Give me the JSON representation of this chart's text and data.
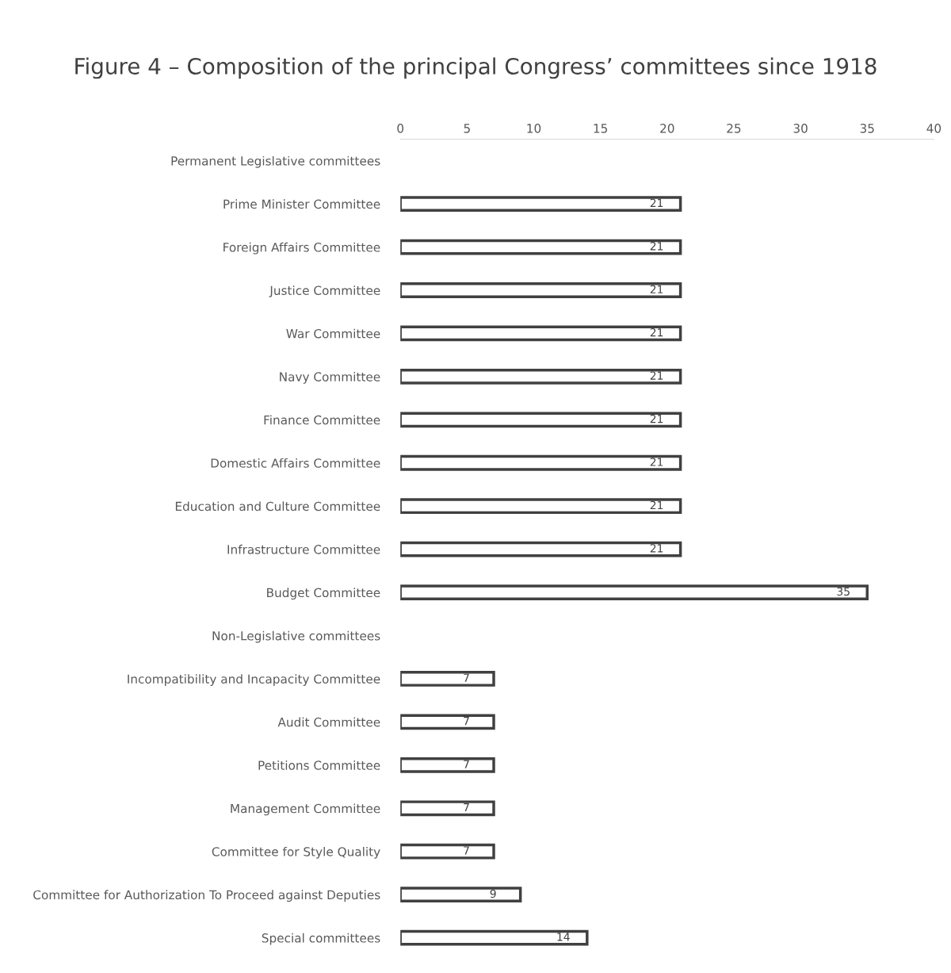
{
  "chart_data": {
    "type": "bar",
    "orientation": "horizontal",
    "title": "Figure 4 – Composition of the principal Congress’ committees since 1918",
    "categories": [
      "Permanent Legislative committees",
      "Prime Minister Committee",
      "Foreign Affairs Committee",
      "Justice Committee",
      "War Committee",
      "Navy Committee",
      "Finance Committee",
      "Domestic Affairs Committee",
      "Education and Culture Committee",
      "Infrastructure Committee",
      "Budget Committee",
      "Non-Legislative committees",
      "Incompatibility and Incapacity Committee",
      "Audit Committee",
      "Petitions Committee",
      "Management Committee",
      "Committee for Style Quality",
      "Committee for Authorization To Proceed against Deputies",
      "Special committees"
    ],
    "values": [
      null,
      21,
      21,
      21,
      21,
      21,
      21,
      21,
      21,
      21,
      35,
      null,
      7,
      7,
      7,
      7,
      7,
      9,
      14
    ],
    "color": "#404040",
    "xlim": [
      0,
      40
    ],
    "xticks": [
      0,
      5,
      10,
      15,
      20,
      25,
      30,
      35,
      40
    ],
    "data_labels": true,
    "grid": false,
    "legend": false
  }
}
